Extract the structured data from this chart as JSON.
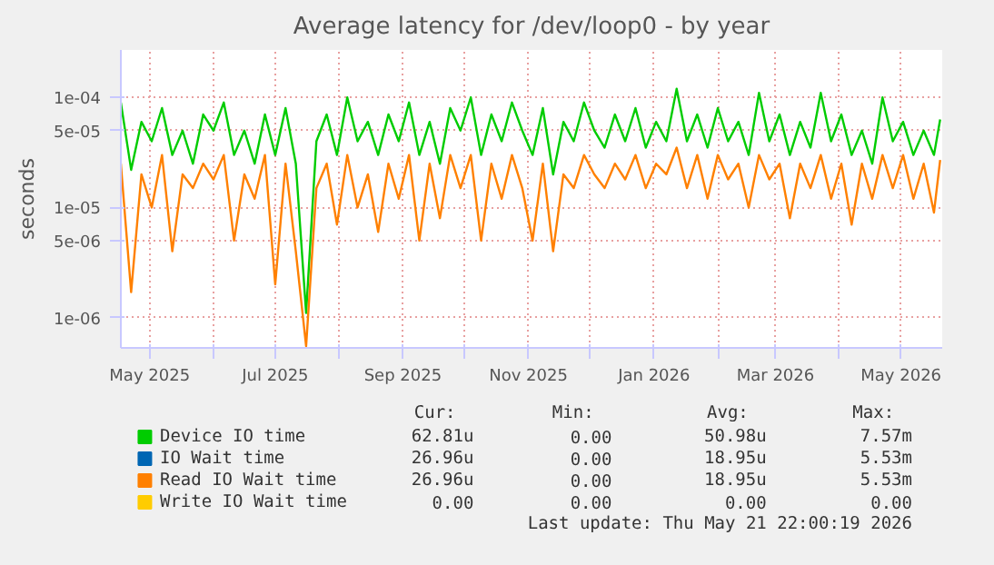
{
  "chart_data": {
    "type": "line",
    "title": "Average latency for /dev/loop0 - by year",
    "ylabel": "seconds",
    "log": "y",
    "grid": true,
    "legend": "bottom",
    "line_style": "solid",
    "marker": "none",
    "x": [
      "2025-04-17",
      "2025-04-22",
      "2025-04-27",
      "2025-05-02",
      "2025-05-07",
      "2025-05-12",
      "2025-05-17",
      "2025-05-22",
      "2025-05-27",
      "2025-06-01",
      "2025-06-06",
      "2025-06-11",
      "2025-06-16",
      "2025-06-21",
      "2025-06-26",
      "2025-07-01",
      "2025-07-06",
      "2025-07-11",
      "2025-07-16",
      "2025-07-21",
      "2025-07-26",
      "2025-07-31",
      "2025-08-05",
      "2025-08-10",
      "2025-08-15",
      "2025-08-20",
      "2025-08-25",
      "2025-08-30",
      "2025-09-04",
      "2025-09-09",
      "2025-09-14",
      "2025-09-19",
      "2025-09-24",
      "2025-09-29",
      "2025-10-04",
      "2025-10-09",
      "2025-10-14",
      "2025-10-19",
      "2025-10-24",
      "2025-10-29",
      "2025-11-03",
      "2025-11-08",
      "2025-11-13",
      "2025-11-18",
      "2025-11-23",
      "2025-11-28",
      "2025-12-03",
      "2025-12-08",
      "2025-12-13",
      "2025-12-18",
      "2025-12-23",
      "2025-12-28",
      "2026-01-02",
      "2026-01-07",
      "2026-01-12",
      "2026-01-17",
      "2026-01-22",
      "2026-01-27",
      "2026-02-01",
      "2026-02-06",
      "2026-02-11",
      "2026-02-16",
      "2026-02-21",
      "2026-02-26",
      "2026-03-03",
      "2026-03-08",
      "2026-03-13",
      "2026-03-18",
      "2026-03-23",
      "2026-03-28",
      "2026-04-02",
      "2026-04-07",
      "2026-04-12",
      "2026-04-17",
      "2026-04-22",
      "2026-04-27",
      "2026-05-02",
      "2026-05-07",
      "2026-05-12",
      "2026-05-17",
      "2026-05-20"
    ],
    "series": [
      {
        "name": "Device IO time",
        "color": "#00cc00",
        "values": [
          9e-05,
          2.2e-05,
          6e-05,
          4e-05,
          8e-05,
          3e-05,
          5e-05,
          2.5e-05,
          7e-05,
          5e-05,
          9e-05,
          3e-05,
          5e-05,
          2.5e-05,
          7e-05,
          3e-05,
          8e-05,
          2.5e-05,
          1.1e-06,
          4e-05,
          7e-05,
          3e-05,
          0.0001,
          4e-05,
          6e-05,
          3e-05,
          7e-05,
          4e-05,
          9e-05,
          3e-05,
          6e-05,
          2.5e-05,
          8e-05,
          5e-05,
          0.0001,
          3e-05,
          7e-05,
          4e-05,
          9e-05,
          5e-05,
          3e-05,
          8e-05,
          2e-05,
          6e-05,
          4e-05,
          9e-05,
          5e-05,
          3.5e-05,
          7e-05,
          4e-05,
          8e-05,
          3.5e-05,
          6e-05,
          4e-05,
          0.00012,
          4e-05,
          7e-05,
          3.5e-05,
          8e-05,
          4e-05,
          6e-05,
          3e-05,
          0.00011,
          4e-05,
          7e-05,
          3e-05,
          6e-05,
          3.5e-05,
          0.00011,
          4e-05,
          7e-05,
          3e-05,
          5e-05,
          2.5e-05,
          0.0001,
          4e-05,
          6e-05,
          3e-05,
          5e-05,
          3e-05,
          6.3e-05
        ]
      },
      {
        "name": "IO Wait time",
        "color": "#0066b3",
        "values": [
          null,
          null,
          null,
          null,
          null,
          null,
          null,
          null,
          null,
          null,
          null,
          null,
          null,
          null,
          null,
          null,
          null,
          null,
          null,
          null,
          null,
          null,
          null,
          null,
          null,
          null,
          null,
          null,
          null,
          null,
          null,
          null,
          null,
          null,
          null,
          null,
          null,
          null,
          null,
          null,
          null,
          null,
          null,
          null,
          null,
          null,
          null,
          null,
          null,
          null,
          null,
          null,
          null,
          null,
          null,
          null,
          null,
          null,
          null,
          null,
          null,
          null,
          null,
          null,
          null,
          null,
          null,
          null,
          null,
          null,
          null,
          null,
          null,
          null,
          null,
          null,
          null,
          null,
          null,
          null,
          null
        ]
      },
      {
        "name": "Read IO Wait time",
        "color": "#ff8000",
        "values": [
          2.5e-05,
          1.7e-06,
          2e-05,
          1e-05,
          3e-05,
          4e-06,
          2e-05,
          1.5e-05,
          2.5e-05,
          1.8e-05,
          3e-05,
          5e-06,
          2e-05,
          1.2e-05,
          3e-05,
          2e-06,
          2.5e-05,
          4e-06,
          5.5e-07,
          1.5e-05,
          2.5e-05,
          7e-06,
          3e-05,
          1e-05,
          2e-05,
          6e-06,
          2.5e-05,
          1.2e-05,
          3e-05,
          5e-06,
          2.5e-05,
          8e-06,
          3e-05,
          1.5e-05,
          3e-05,
          5e-06,
          2.5e-05,
          1.2e-05,
          3e-05,
          1.5e-05,
          5e-06,
          2.5e-05,
          4e-06,
          2e-05,
          1.5e-05,
          3e-05,
          2e-05,
          1.5e-05,
          2.5e-05,
          1.8e-05,
          3e-05,
          1.5e-05,
          2.5e-05,
          2e-05,
          3.5e-05,
          1.5e-05,
          3e-05,
          1.2e-05,
          3e-05,
          1.8e-05,
          2.5e-05,
          1e-05,
          3e-05,
          1.8e-05,
          2.5e-05,
          8e-06,
          2.5e-05,
          1.5e-05,
          3e-05,
          1.2e-05,
          2.5e-05,
          7e-06,
          2.5e-05,
          1.2e-05,
          3e-05,
          1.5e-05,
          3e-05,
          1.2e-05,
          2.5e-05,
          9e-06,
          2.7e-05
        ]
      },
      {
        "name": "Write IO Wait time",
        "color": "#ffcc00",
        "values": [
          null,
          null,
          null,
          null,
          null,
          null,
          null,
          null,
          null,
          null,
          null,
          null,
          null,
          null,
          null,
          null,
          null,
          null,
          null,
          null,
          null,
          null,
          null,
          null,
          null,
          null,
          null,
          null,
          null,
          null,
          null,
          null,
          null,
          null,
          null,
          null,
          null,
          null,
          null,
          null,
          null,
          null,
          null,
          null,
          null,
          null,
          null,
          null,
          null,
          null,
          null,
          null,
          null,
          null,
          null,
          null,
          null,
          null,
          null,
          null,
          null,
          null,
          null,
          null,
          null,
          null,
          null,
          null,
          null,
          null,
          null,
          null,
          null,
          null,
          null,
          null,
          null,
          null,
          null,
          null,
          null
        ]
      }
    ],
    "xlim": [
      "2025-04-17",
      "2026-05-21"
    ],
    "xticks": [
      {
        "value": "2025-05-01",
        "label": "May 2025"
      },
      {
        "value": "2025-06-01",
        "label": null
      },
      {
        "value": "2025-07-01",
        "label": "Jul 2025"
      },
      {
        "value": "2025-08-01",
        "label": null
      },
      {
        "value": "2025-09-01",
        "label": "Sep 2025"
      },
      {
        "value": "2025-10-01",
        "label": null
      },
      {
        "value": "2025-11-01",
        "label": "Nov 2025"
      },
      {
        "value": "2025-12-01",
        "label": null
      },
      {
        "value": "2026-01-01",
        "label": "Jan 2026"
      },
      {
        "value": "2026-02-01",
        "label": null
      },
      {
        "value": "2026-03-01",
        "label": "Mar 2026"
      },
      {
        "value": "2026-04-01",
        "label": null
      },
      {
        "value": "2026-05-01",
        "label": "May 2026"
      }
    ],
    "ylim": [
      5.3e-07,
      0.00027
    ],
    "yticks": [
      {
        "value": 1e-06,
        "label": "1e-06"
      },
      {
        "value": 5e-06,
        "label": "5e-06"
      },
      {
        "value": 1e-05,
        "label": "1e-05"
      },
      {
        "value": 5e-05,
        "label": "5e-05"
      },
      {
        "value": 0.0001,
        "label": "1e-04"
      }
    ],
    "annotations": [
      "Cur:",
      "Min:",
      "Avg:",
      "Max:",
      "62.81u",
      "0.00",
      "50.98u",
      "7.57m",
      "26.96u",
      "0.00",
      "18.95u",
      "5.53m",
      "26.96u",
      "0.00",
      "18.95u",
      "5.53m",
      "0.00",
      "0.00",
      "0.00",
      "0.00",
      "Last update: Thu May 21 22:00:19 2026"
    ]
  }
}
